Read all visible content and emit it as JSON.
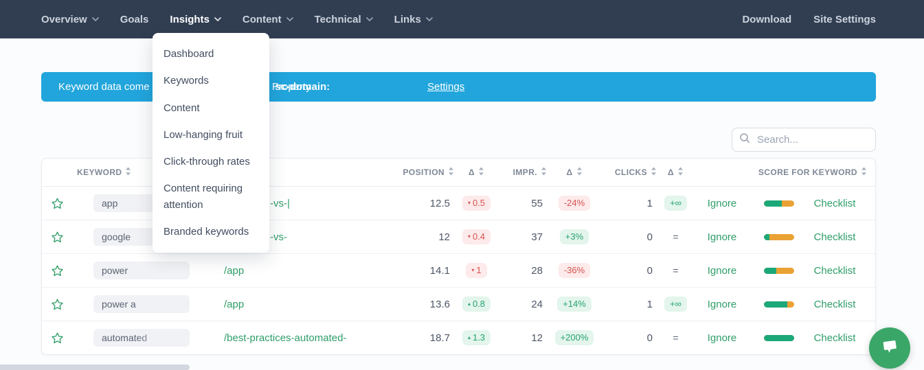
{
  "nav": {
    "items": [
      {
        "label": "Overview",
        "caret": true
      },
      {
        "label": "Goals",
        "caret": false
      },
      {
        "label": "Insights",
        "caret": true,
        "active": true
      },
      {
        "label": "Content",
        "caret": true
      },
      {
        "label": "Technical",
        "caret": true
      },
      {
        "label": "Links",
        "caret": true
      }
    ],
    "right_items": [
      {
        "label": "Download"
      },
      {
        "label": "Site Settings"
      }
    ]
  },
  "insights_menu": {
    "items": [
      {
        "label": "Dashboard"
      },
      {
        "label": "Keywords"
      },
      {
        "label": "Content"
      },
      {
        "label": "Low-hanging fruit"
      },
      {
        "label": "Click-through rates"
      },
      {
        "label": "Content requiring attention"
      },
      {
        "label": "Branded keywords"
      }
    ]
  },
  "banner": {
    "message_left": "Keyword data come",
    "property_label": "Property",
    "property_value": "sc-domain:",
    "settings_link": "Settings"
  },
  "search": {
    "placeholder": "Search..."
  },
  "table": {
    "headers": {
      "keyword": "KEYWORD",
      "position": "POSITION",
      "delta": "Δ",
      "impr": "IMPR.",
      "clicks": "CLICKS",
      "score": "SCORE FOR KEYWORD"
    },
    "rows": [
      {
        "keyword": "app",
        "url": "-vs-|",
        "position": "12.5",
        "pos_delta": "0.5",
        "pos_delta_dir": "down",
        "impr": "55",
        "impr_delta": "-24%",
        "clicks": "1",
        "clicks_delta": "+∞",
        "ignore": "Ignore",
        "score_green_pct": 60,
        "checklist": "Checklist"
      },
      {
        "keyword": "google",
        "url": "-vs-",
        "position": "12",
        "pos_delta": "0.4",
        "pos_delta_dir": "down",
        "impr": "37",
        "impr_delta": "+3%",
        "clicks": "0",
        "clicks_delta": "=",
        "ignore": "Ignore",
        "score_green_pct": 20,
        "checklist": "Checklist"
      },
      {
        "keyword": "power",
        "url": "/app",
        "position": "14.1",
        "pos_delta": "1",
        "pos_delta_dir": "down",
        "impr": "28",
        "impr_delta": "-36%",
        "clicks": "0",
        "clicks_delta": "=",
        "ignore": "Ignore",
        "score_green_pct": 42,
        "checklist": "Checklist"
      },
      {
        "keyword": "power a",
        "url": "/app",
        "position": "13.6",
        "pos_delta": "0.8",
        "pos_delta_dir": "up",
        "impr": "24",
        "impr_delta": "+14%",
        "clicks": "1",
        "clicks_delta": "+∞",
        "ignore": "Ignore",
        "score_green_pct": 78,
        "checklist": "Checklist"
      },
      {
        "keyword": "automated",
        "url": "/best-practices-automated-",
        "position": "18.7",
        "pos_delta": "1.3",
        "pos_delta_dir": "up",
        "impr": "12",
        "impr_delta": "+200%",
        "clicks": "0",
        "clicks_delta": "=",
        "ignore": "Ignore",
        "score_green_pct": 100,
        "checklist": "Checklist"
      }
    ]
  },
  "colors": {
    "nav_bg": "#313e52",
    "banner_blue": "#21a5dc",
    "accent_green": "#2f9e68",
    "bar_green": "#1ca878",
    "bar_orange": "#eaa235",
    "neg_text": "#d95252",
    "neg_bg": "#fdeaea",
    "pos_text": "#27a371",
    "pos_bg": "#e3f5ec",
    "chat_green": "#3aa768"
  }
}
